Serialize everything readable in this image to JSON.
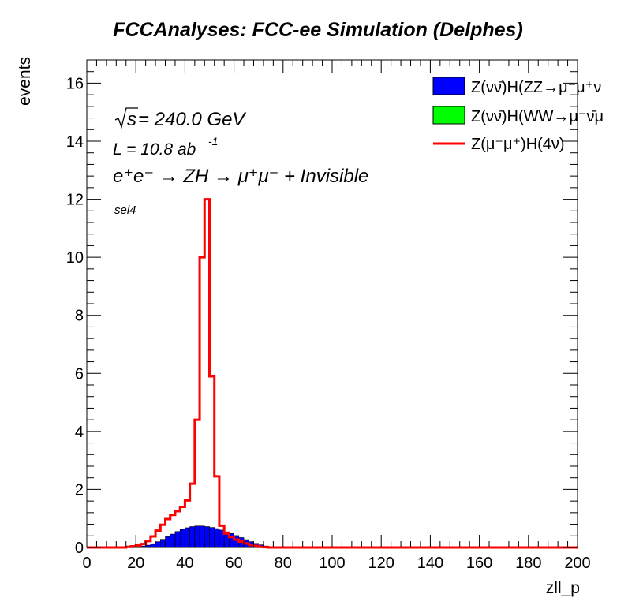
{
  "chart_data": {
    "type": "histogram",
    "title": "FCCAnalyses: FCC-ee Simulation (Delphes)",
    "xlabel": "zll_p",
    "ylabel": "events",
    "xlim": [
      0,
      200
    ],
    "ylim": [
      0,
      16.8
    ],
    "bin_width": 2,
    "grid": false,
    "legend_position": "top-right",
    "x_ticks": [
      "0",
      "20",
      "40",
      "60",
      "80",
      "100",
      "120",
      "140",
      "160",
      "180",
      "200"
    ],
    "y_ticks": [
      "0",
      "2",
      "4",
      "6",
      "8",
      "10",
      "12",
      "14",
      "16"
    ],
    "annotations": {
      "sqrt_s": "s",
      "energy": " = 240.0 GeV",
      "lumi": "L = 10.8 ab",
      "lumi_exp": "-1",
      "process": "e⁺e⁻ → ZH → μ⁺μ⁻ + Invisible",
      "selection": "sel4"
    },
    "series": [
      {
        "name": "Z(νν̄)H(ZZ→μ⁻μ⁺ν",
        "style": "filled",
        "color": "#0000ff",
        "bin_start": 16,
        "values": [
          0.01,
          0.02,
          0.03,
          0.05,
          0.08,
          0.13,
          0.2,
          0.28,
          0.37,
          0.46,
          0.55,
          0.62,
          0.68,
          0.72,
          0.74,
          0.74,
          0.72,
          0.69,
          0.65,
          0.6,
          0.54,
          0.48,
          0.41,
          0.34,
          0.27,
          0.2,
          0.14,
          0.09,
          0.05,
          0.02
        ]
      },
      {
        "name": "Z(νν̄)H(WW→μ⁻ν̄μ",
        "style": "filled",
        "color": "#00ff00",
        "bin_start": 16,
        "values": [
          0,
          0,
          0,
          0,
          0,
          0,
          0,
          0,
          0,
          0,
          0,
          0,
          0,
          0,
          0,
          0,
          0,
          0,
          0,
          0,
          0,
          0,
          0,
          0,
          0,
          0,
          0,
          0,
          0,
          0
        ]
      },
      {
        "name": "Z(μ⁻μ⁺)H(4ν)",
        "style": "line",
        "color": "#ff0000",
        "bin_start": 16,
        "values": [
          0.02,
          0.04,
          0.07,
          0.12,
          0.22,
          0.38,
          0.58,
          0.78,
          0.98,
          1.12,
          1.25,
          1.4,
          1.62,
          2.2,
          4.4,
          10.0,
          12.0,
          5.9,
          2.45,
          0.75,
          0.48,
          0.36,
          0.27,
          0.2,
          0.14,
          0.09,
          0.05,
          0.02,
          0.01,
          0.0
        ]
      }
    ]
  }
}
